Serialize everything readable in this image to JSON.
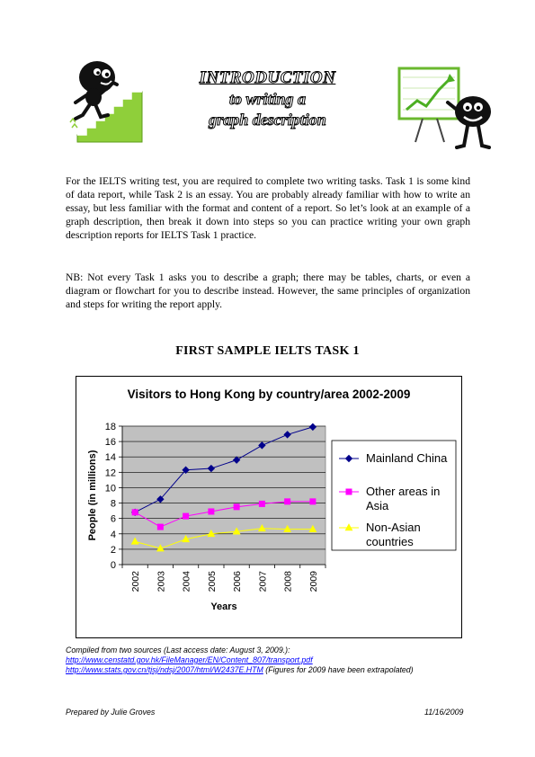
{
  "header": {
    "title_line1": "INTRODUCTION",
    "title_line2": "to writing a",
    "title_line3": "graph description"
  },
  "intro": {
    "paragraph1": "For the IELTS writing test, you are required to complete two writing tasks. Task 1 is some kind of data report, while Task 2 is an essay. You are probably already familiar with how to write an essay, but less familiar with the format and content of a report. So let’s look at an example of a graph description, then break it down into steps so you can practice writing your own graph description reports for IELTS Task 1 practice.",
    "paragraph2": "NB: Not every Task 1 asks you to describe a graph; there may be tables, charts, or even a diagram or flowchart for you to describe instead. However, the same principles of organization and steps for writing the report apply."
  },
  "section_heading": "FIRST SAMPLE IELTS TASK 1",
  "chart_data": {
    "type": "line",
    "title": "Visitors to Hong Kong by country/area 2002-2009",
    "xlabel": "Years",
    "ylabel": "People (in millions)",
    "x": [
      "2002",
      "2003",
      "2004",
      "2005",
      "2006",
      "2007",
      "2008",
      "2009"
    ],
    "yticks": [
      "0",
      "2",
      "4",
      "6",
      "8",
      "10",
      "12",
      "14",
      "16",
      "18"
    ],
    "ylim": [
      0,
      18
    ],
    "grid": true,
    "legend": "right",
    "series": [
      {
        "name": "Mainland China",
        "color": "#00008b",
        "marker": "diamond",
        "values": [
          6.8,
          8.5,
          12.3,
          12.5,
          13.6,
          15.5,
          16.9,
          17.9
        ]
      },
      {
        "name": "Other areas in Asia",
        "color": "#ff00ff",
        "marker": "square",
        "values": [
          6.8,
          4.9,
          6.3,
          6.9,
          7.5,
          7.9,
          8.2,
          8.2
        ]
      },
      {
        "name": "Non-Asian countries",
        "color": "#ffff00",
        "marker": "triangle",
        "values": [
          3.0,
          2.1,
          3.3,
          4.0,
          4.3,
          4.7,
          4.6,
          4.6
        ]
      }
    ],
    "legend_lines": [
      [
        "Mainland China"
      ],
      [
        "Other areas in",
        "Asia"
      ],
      [
        "Non-Asian",
        "countries"
      ]
    ]
  },
  "sources": {
    "caption": "Compiled from two sources (Last access date: August 3, 2009.):",
    "link1": "http://www.censtatd.gov.hk/FileManager/EN/Content_807/transport.pdf",
    "link2": "http://www.stats.gov.cn/tjsj/ndsj/2007/html/W2437E.HTM",
    "link2_note": " (Figures for 2009 have been extrapolated)"
  },
  "footer": {
    "author": "Prepared by Julie Groves",
    "date": "11/16/2009"
  }
}
